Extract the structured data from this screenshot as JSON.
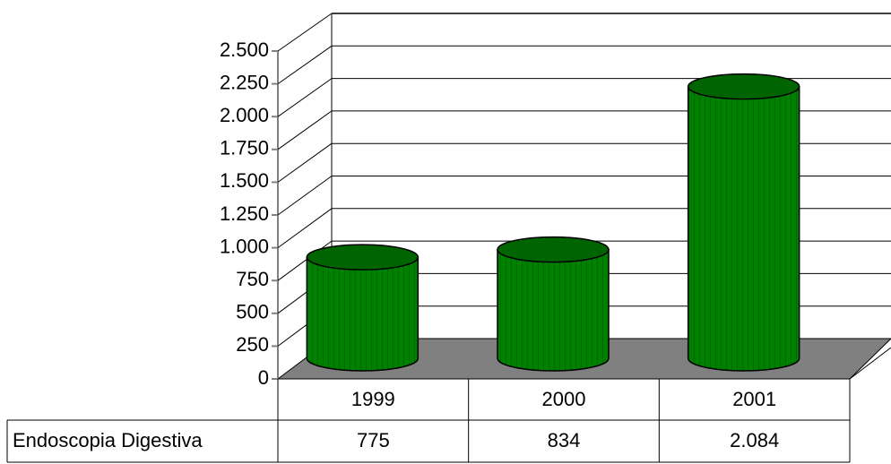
{
  "chart_data": {
    "type": "bar",
    "categories": [
      "1999",
      "2000",
      "2001"
    ],
    "series": [
      {
        "name": "Endoscopia Digestiva",
        "color": "#008000",
        "values": [
          775,
          834,
          2084
        ],
        "value_labels": [
          "775",
          "834",
          "2.084"
        ]
      }
    ],
    "ylim": [
      0,
      2500
    ],
    "yticks": [
      0,
      250,
      500,
      750,
      {
        "value": 1000,
        "label": "1.000"
      },
      {
        "value": 1250,
        "label": "1.250"
      },
      {
        "value": 1500,
        "label": "1.500"
      },
      {
        "value": 1750,
        "label": "1.750"
      },
      {
        "value": 2000,
        "label": "2.000"
      },
      {
        "value": 2250,
        "label": "2.250"
      },
      {
        "value": 2500,
        "label": "2.500"
      }
    ],
    "grid": true
  }
}
